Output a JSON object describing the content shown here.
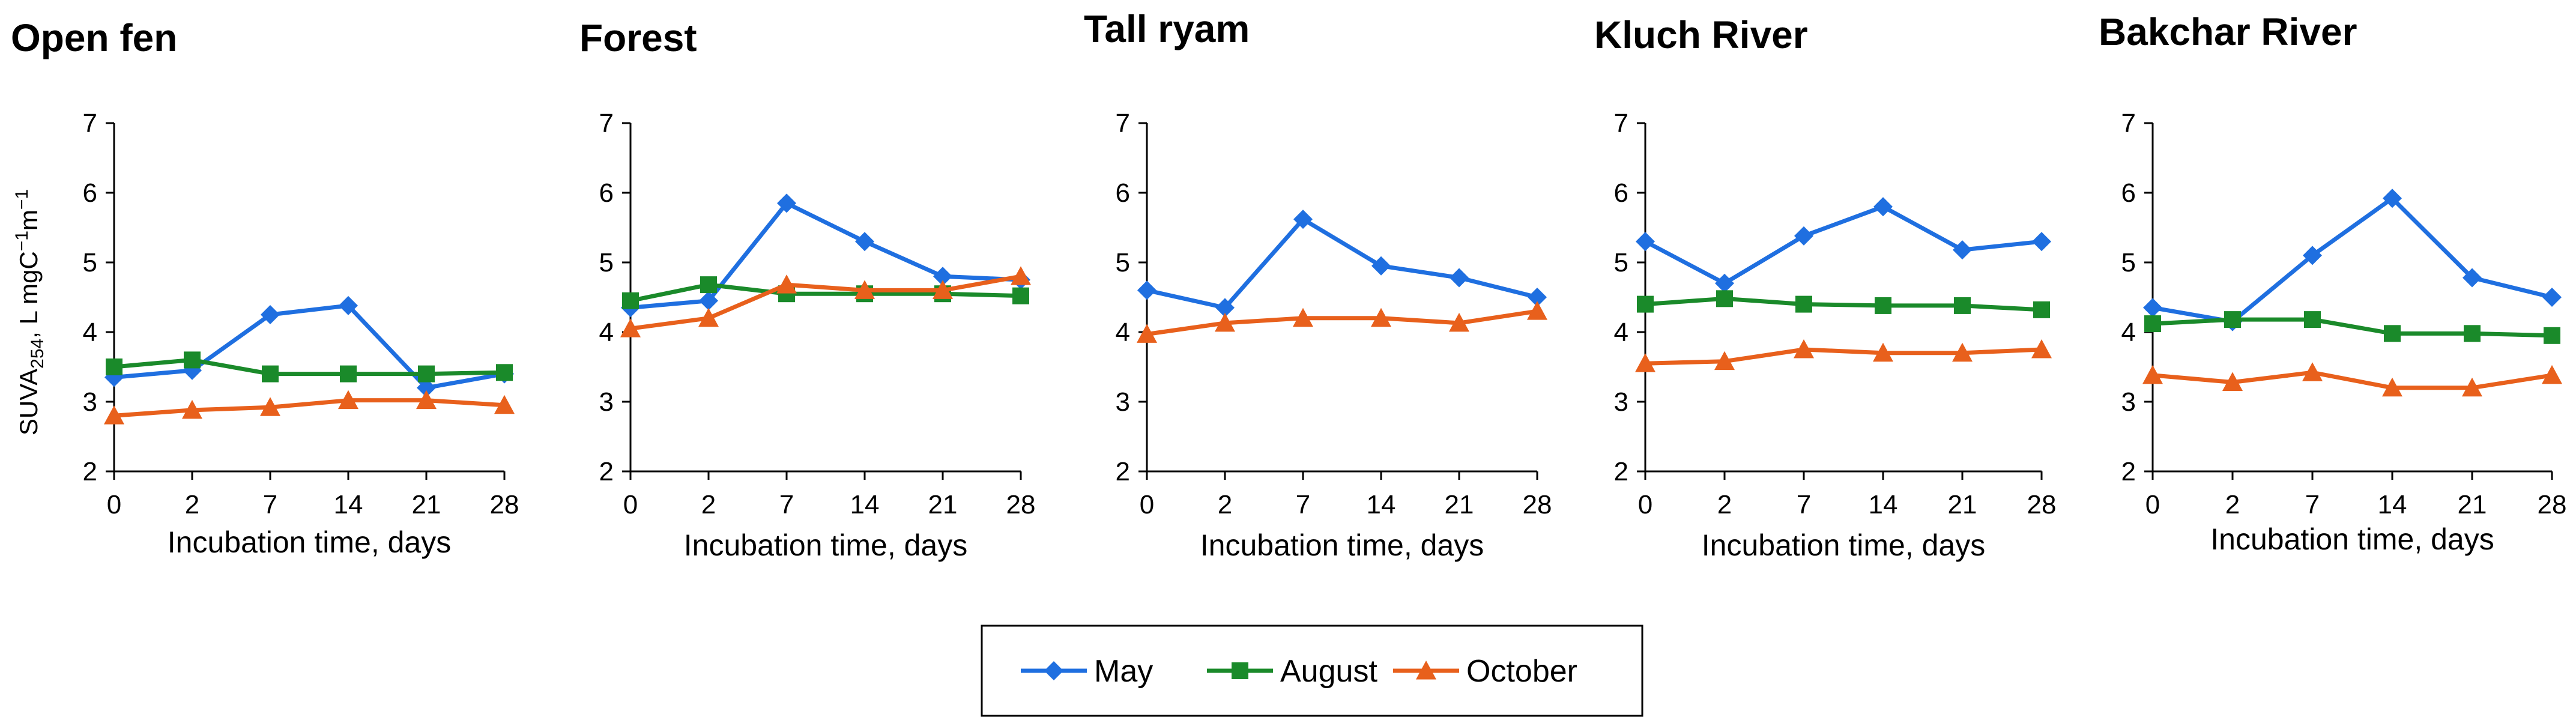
{
  "series_colors": {
    "May": "#1f6fe0",
    "August": "#1a8a2a",
    "October": "#e8601c"
  },
  "series_markers": {
    "May": "diamond",
    "August": "square",
    "October": "triangle"
  },
  "legend": [
    {
      "label": "May",
      "color": "#1f6fe0",
      "marker": "diamond"
    },
    {
      "label": "August",
      "color": "#1a8a2a",
      "marker": "square"
    },
    {
      "label": "October",
      "color": "#e8601c",
      "marker": "triangle"
    }
  ],
  "y_axis_label": {
    "prefix": "SUVA",
    "subscript": "254",
    "middle": ", L mgC",
    "sup1": "−1",
    "middle2": "m",
    "sup2": "−1"
  },
  "chart_data": [
    {
      "type": "line",
      "title": "Open fen",
      "categories": [
        "0",
        "2",
        "7",
        "14",
        "21",
        "28"
      ],
      "xlabel": "Incubation time, days",
      "ylabel": "SUVA254, L mgC−1m−1",
      "ylim": [
        2,
        7
      ],
      "yticks": [
        "2",
        "3",
        "4",
        "5",
        "6",
        "7"
      ],
      "series": [
        {
          "name": "May",
          "values": [
            3.35,
            3.45,
            4.25,
            4.38,
            3.2,
            3.4
          ]
        },
        {
          "name": "August",
          "values": [
            3.5,
            3.6,
            3.4,
            3.4,
            3.4,
            3.42
          ]
        },
        {
          "name": "October",
          "values": [
            2.8,
            2.88,
            2.92,
            3.02,
            3.02,
            2.95
          ]
        }
      ]
    },
    {
      "type": "line",
      "title": "Forest",
      "categories": [
        "0",
        "2",
        "7",
        "14",
        "21",
        "28"
      ],
      "xlabel": "Incubation time, days",
      "ylabel": "",
      "ylim": [
        2,
        7
      ],
      "yticks": [
        "2",
        "3",
        "4",
        "5",
        "6",
        "7"
      ],
      "series": [
        {
          "name": "May",
          "values": [
            4.35,
            4.45,
            5.85,
            5.3,
            4.8,
            4.75
          ]
        },
        {
          "name": "August",
          "values": [
            4.45,
            4.68,
            4.55,
            4.55,
            4.55,
            4.52
          ]
        },
        {
          "name": "October",
          "values": [
            4.05,
            4.2,
            4.68,
            4.6,
            4.6,
            4.8
          ]
        }
      ]
    },
    {
      "type": "line",
      "title": "Tall ryam",
      "categories": [
        "0",
        "2",
        "7",
        "14",
        "21",
        "28"
      ],
      "xlabel": "Incubation time, days",
      "ylabel": "",
      "ylim": [
        2,
        7
      ],
      "yticks": [
        "2",
        "3",
        "4",
        "5",
        "6",
        "7"
      ],
      "series": [
        {
          "name": "May",
          "values": [
            4.6,
            4.35,
            5.62,
            4.95,
            4.78,
            4.5
          ]
        },
        {
          "name": "October",
          "values": [
            3.97,
            4.13,
            4.2,
            4.2,
            4.13,
            4.3
          ]
        }
      ]
    },
    {
      "type": "line",
      "title": "Kluch River",
      "categories": [
        "0",
        "2",
        "7",
        "14",
        "21",
        "28"
      ],
      "xlabel": "Incubation time, days",
      "ylabel": "",
      "ylim": [
        2,
        7
      ],
      "yticks": [
        "2",
        "3",
        "4",
        "5",
        "6",
        "7"
      ],
      "series": [
        {
          "name": "May",
          "values": [
            5.3,
            4.7,
            5.38,
            5.8,
            5.18,
            5.3
          ]
        },
        {
          "name": "August",
          "values": [
            4.4,
            4.48,
            4.4,
            4.38,
            4.38,
            4.32
          ]
        },
        {
          "name": "October",
          "values": [
            3.55,
            3.58,
            3.75,
            3.7,
            3.7,
            3.75
          ]
        }
      ]
    },
    {
      "type": "line",
      "title": "Bakchar River",
      "categories": [
        "0",
        "2",
        "7",
        "14",
        "21",
        "28"
      ],
      "xlabel": "Incubation time, days",
      "ylabel": "",
      "ylim": [
        2,
        7
      ],
      "yticks": [
        "2",
        "3",
        "4",
        "5",
        "6",
        "7"
      ],
      "series": [
        {
          "name": "May",
          "values": [
            4.35,
            4.15,
            5.1,
            5.92,
            4.78,
            4.5
          ]
        },
        {
          "name": "August",
          "values": [
            4.12,
            4.18,
            4.18,
            3.98,
            3.98,
            3.95
          ]
        },
        {
          "name": "October",
          "values": [
            3.38,
            3.28,
            3.42,
            3.2,
            3.2,
            3.38
          ]
        }
      ]
    }
  ]
}
